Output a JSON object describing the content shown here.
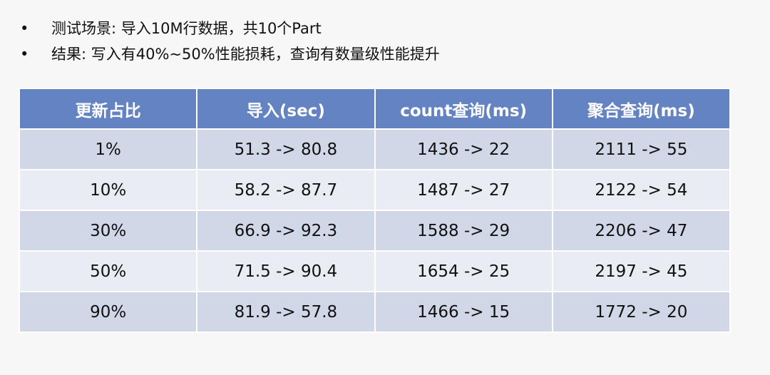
{
  "bullets": [
    "测试场景: 导入10M行数据，共10个Part",
    "结果: 写入有40%~50%性能损耗，查询有数量级性能提升"
  ],
  "table": {
    "header": [
      "更新占比",
      "导入(sec)",
      "count查询(ms)",
      "聚合查询(ms)"
    ],
    "rows": [
      [
        "1%",
        "51.3 -> 80.8",
        "1436 -> 22",
        "2111 -> 55"
      ],
      [
        "10%",
        "58.2 -> 87.7",
        "1487 -> 27",
        "2122 -> 54"
      ],
      [
        "30%",
        "66.9 -> 92.3",
        "1588 -> 29",
        "2206 -> 47"
      ],
      [
        "50%",
        "71.5 -> 90.4",
        "1654 -> 25",
        "2197 -> 45"
      ],
      [
        "90%",
        "81.9 -> 57.8",
        "1466 -> 15",
        "1772 -> 20"
      ]
    ]
  }
}
